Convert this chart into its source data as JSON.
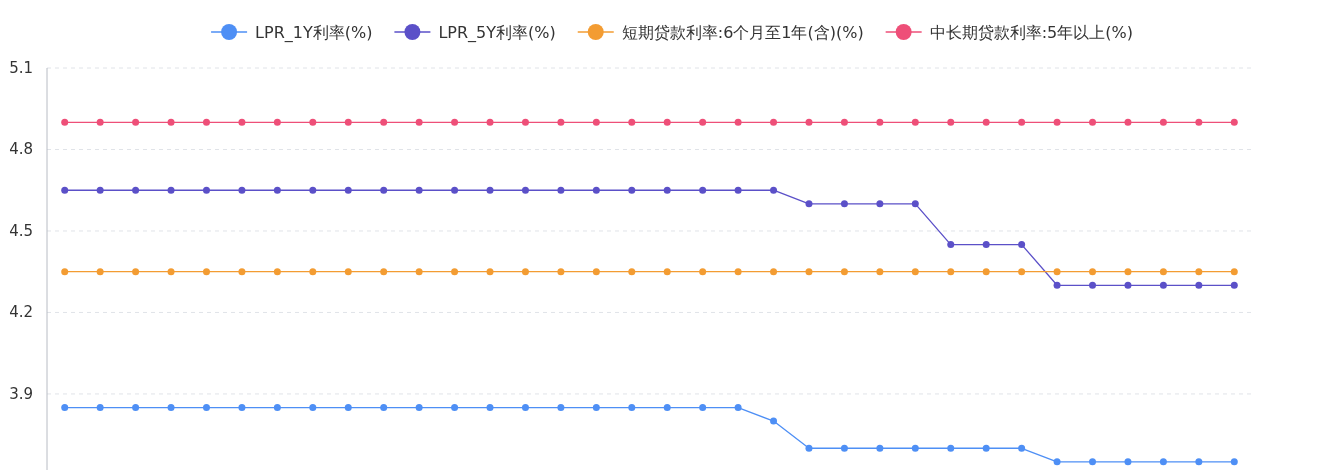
{
  "chart_data": {
    "type": "line",
    "categories": [
      null,
      null,
      null,
      null,
      null,
      null,
      null,
      null,
      null,
      null,
      null,
      null,
      null,
      null,
      null,
      null,
      null,
      null,
      null,
      null,
      null,
      null,
      null,
      null,
      null,
      null,
      null,
      null,
      null,
      null,
      null,
      null,
      null,
      null
    ],
    "series": [
      {
        "name": "LPR_1Y利率(%)",
        "color": "#4e8ff5",
        "values": [
          3.85,
          3.85,
          3.85,
          3.85,
          3.85,
          3.85,
          3.85,
          3.85,
          3.85,
          3.85,
          3.85,
          3.85,
          3.85,
          3.85,
          3.85,
          3.85,
          3.85,
          3.85,
          3.85,
          3.85,
          3.8,
          3.7,
          3.7,
          3.7,
          3.7,
          3.7,
          3.7,
          3.7,
          3.65,
          3.65,
          3.65,
          3.65,
          3.65,
          3.65
        ]
      },
      {
        "name": "LPR_5Y利率(%)",
        "color": "#5b50c8",
        "values": [
          4.65,
          4.65,
          4.65,
          4.65,
          4.65,
          4.65,
          4.65,
          4.65,
          4.65,
          4.65,
          4.65,
          4.65,
          4.65,
          4.65,
          4.65,
          4.65,
          4.65,
          4.65,
          4.65,
          4.65,
          4.65,
          4.6,
          4.6,
          4.6,
          4.6,
          4.45,
          4.45,
          4.45,
          4.3,
          4.3,
          4.3,
          4.3,
          4.3,
          4.3
        ]
      },
      {
        "name": "短期贷款利率:6个月至1年(含)(%)",
        "color": "#f39c32",
        "values": [
          4.35,
          4.35,
          4.35,
          4.35,
          4.35,
          4.35,
          4.35,
          4.35,
          4.35,
          4.35,
          4.35,
          4.35,
          4.35,
          4.35,
          4.35,
          4.35,
          4.35,
          4.35,
          4.35,
          4.35,
          4.35,
          4.35,
          4.35,
          4.35,
          4.35,
          4.35,
          4.35,
          4.35,
          4.35,
          4.35,
          4.35,
          4.35,
          4.35,
          4.35
        ]
      },
      {
        "name": "中长期贷款利率:5年以上(%)",
        "color": "#ee4f78",
        "values": [
          4.9,
          4.9,
          4.9,
          4.9,
          4.9,
          4.9,
          4.9,
          4.9,
          4.9,
          4.9,
          4.9,
          4.9,
          4.9,
          4.9,
          4.9,
          4.9,
          4.9,
          4.9,
          4.9,
          4.9,
          4.9,
          4.9,
          4.9,
          4.9,
          4.9,
          4.9,
          4.9,
          4.9,
          4.9,
          4.9,
          4.9,
          4.9,
          4.9,
          4.9
        ]
      }
    ],
    "ylim": [
      3.62,
      5.1
    ],
    "yticks": [
      3.9,
      4.2,
      4.5,
      4.8,
      5.1
    ],
    "grid": "y",
    "legend": "top",
    "marker": "circle",
    "line_style": "solid",
    "tick_labels": "y"
  }
}
